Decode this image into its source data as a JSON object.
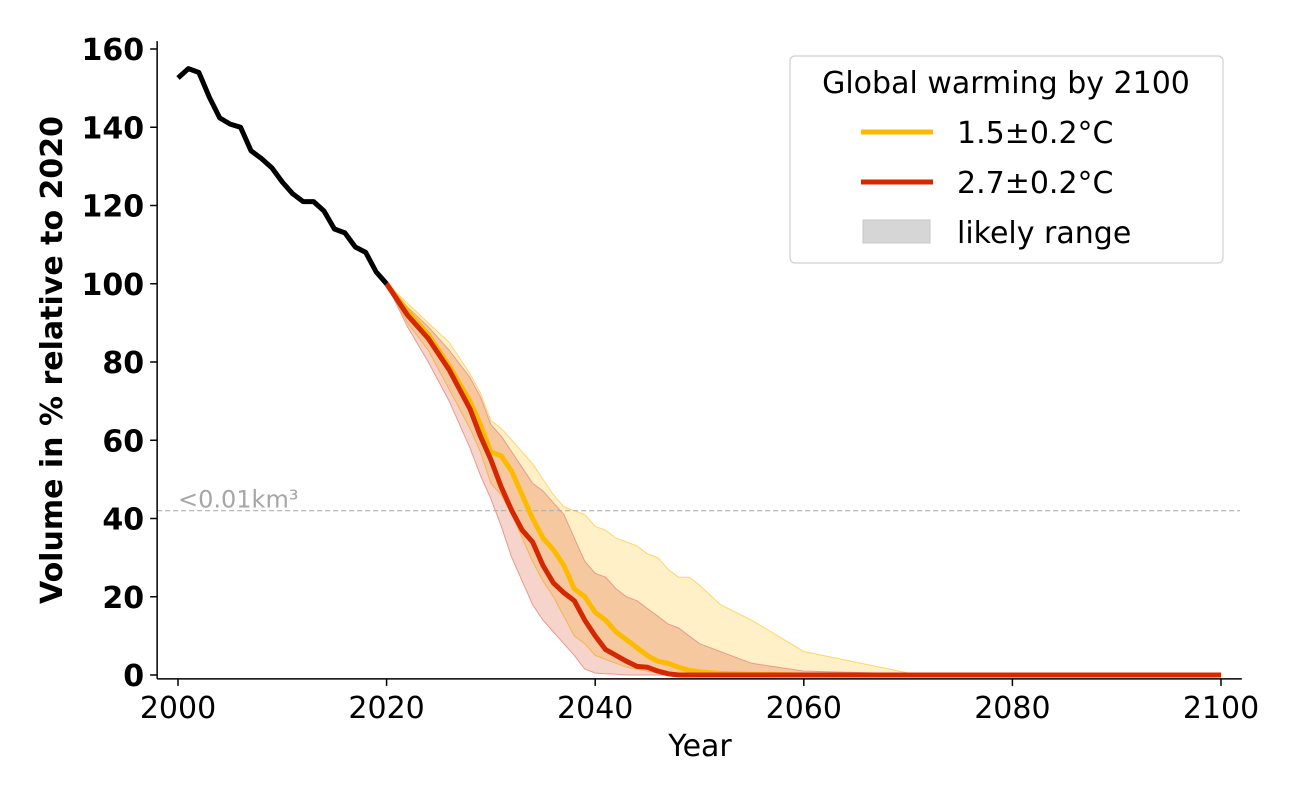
{
  "chart_data": {
    "type": "line",
    "title": "",
    "xlabel": "Year",
    "ylabel": "Volume in % relative to 2020",
    "xlim": [
      1998,
      2102
    ],
    "ylim": [
      -1,
      162
    ],
    "xticks": [
      2000,
      2020,
      2040,
      2060,
      2080,
      2100
    ],
    "yticks": [
      0,
      20,
      40,
      60,
      80,
      100,
      120,
      140,
      160
    ],
    "grid": false,
    "legend": {
      "title": "Global warming by 2100",
      "placement": "top-right",
      "entries": [
        {
          "label": "1.5±0.2°C",
          "kind": "line",
          "color": "#FDBB00"
        },
        {
          "label": "2.7±0.2°C",
          "kind": "line",
          "color": "#D42800"
        },
        {
          "label": "likely range",
          "kind": "patch",
          "color": "#D6D6D6"
        }
      ]
    },
    "annotations": [
      {
        "text": "<0.01km³",
        "type": "hline",
        "y": 42,
        "color": "#B0B0B0",
        "style": "dashed"
      }
    ],
    "series": [
      {
        "name": "observed",
        "color": "#000000",
        "x": [
          2000,
          2001,
          2002,
          2003,
          2004,
          2005,
          2006,
          2007,
          2008,
          2009,
          2010,
          2011,
          2012,
          2013,
          2014,
          2015,
          2016,
          2017,
          2018,
          2019,
          2020
        ],
        "values": [
          152.6,
          155,
          154,
          147.7,
          142.4,
          140.8,
          140,
          134,
          132,
          129.6,
          126,
          123,
          121,
          121,
          118.6,
          114,
          113,
          109.4,
          108,
          103,
          100
        ]
      },
      {
        "name": "1.5±0.2°C",
        "color": "#FDBB00",
        "band_color": "#FDE39A",
        "x": [
          2020,
          2022,
          2024,
          2026,
          2028,
          2029,
          2030,
          2031,
          2032,
          2033,
          2034,
          2035,
          2036,
          2037,
          2038,
          2039,
          2040,
          2041,
          2042,
          2043,
          2044,
          2045,
          2046,
          2047,
          2048,
          2049,
          2050,
          2052,
          2055,
          2060,
          2070,
          2080,
          2090,
          2100
        ],
        "values": [
          100,
          93,
          87,
          79,
          70,
          64,
          57,
          56,
          52,
          46,
          40,
          35,
          32,
          28,
          22,
          20,
          16,
          14,
          11,
          9,
          7,
          5,
          3.5,
          3,
          2,
          1.2,
          0.8,
          0.4,
          0.2,
          0,
          0,
          0,
          0,
          0
        ],
        "band_upper": [
          100,
          95,
          90,
          85,
          77,
          72,
          65,
          63,
          60,
          57,
          54,
          50,
          46,
          43,
          42,
          41,
          38,
          37,
          35,
          34,
          33,
          31,
          30,
          27,
          25,
          25,
          23,
          18,
          14,
          6,
          0.5,
          0.3,
          0.1,
          0.5
        ],
        "band_lower": [
          100,
          90,
          83,
          73,
          63,
          57,
          49,
          46,
          41,
          35,
          29,
          24,
          20,
          15,
          10,
          8,
          5,
          4,
          3,
          2,
          1.5,
          1,
          0.5,
          0.3,
          0.2,
          0.1,
          0,
          0,
          0,
          0,
          0,
          0,
          0,
          0
        ]
      },
      {
        "name": "2.7±0.2°C",
        "color": "#D42800",
        "band_color": "#ECA9A0",
        "x": [
          2020,
          2022,
          2024,
          2026,
          2028,
          2029,
          2030,
          2031,
          2032,
          2033,
          2034,
          2035,
          2036,
          2037,
          2038,
          2039,
          2040,
          2041,
          2042,
          2043,
          2044,
          2045,
          2046,
          2047,
          2048,
          2050,
          2055,
          2060,
          2070,
          2080,
          2090,
          2100
        ],
        "values": [
          100,
          92,
          86,
          78,
          68,
          61,
          55,
          48,
          42,
          37,
          34,
          28,
          23.5,
          21,
          19,
          14,
          10,
          6.5,
          5,
          3.5,
          2.2,
          2,
          1,
          0.3,
          0,
          0,
          0,
          0,
          0,
          0,
          0,
          0
        ],
        "band_upper": [
          100,
          94,
          89,
          83,
          76,
          71,
          64,
          61,
          57,
          53,
          49,
          47,
          44,
          41,
          35,
          29,
          26,
          25,
          22,
          20,
          19,
          17,
          15,
          13,
          12,
          8,
          3,
          1,
          0.3,
          0,
          0,
          0
        ],
        "band_lower": [
          100,
          89,
          80,
          70,
          58,
          51,
          45,
          38,
          30,
          24,
          18,
          14,
          11,
          8,
          5,
          1.5,
          0.5,
          0.3,
          0.2,
          0,
          0,
          0,
          0,
          0,
          0,
          0,
          0,
          0,
          0,
          0,
          0,
          0
        ]
      }
    ]
  }
}
